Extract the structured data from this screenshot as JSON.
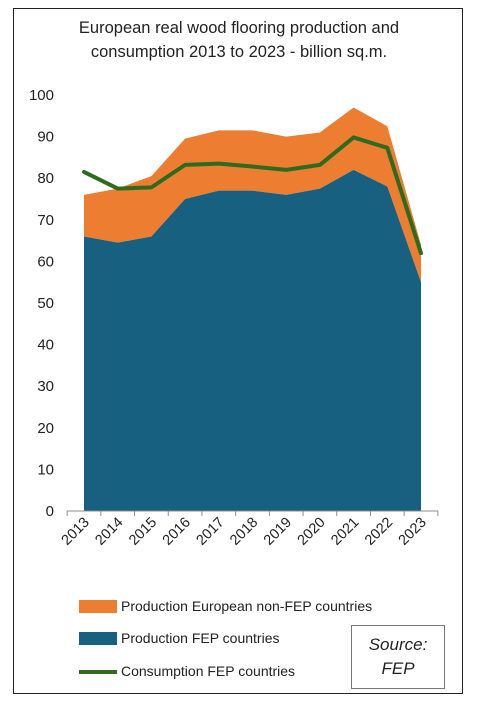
{
  "chart_data": {
    "type": "area",
    "title_line1": "European real wood flooring production and",
    "title_line2": "consumption 2013 to 2023 - billion sq.m.",
    "categories": [
      "2013",
      "2014",
      "2015",
      "2016",
      "2017",
      "2018",
      "2019",
      "2020",
      "2021",
      "2022",
      "2023"
    ],
    "ylim": [
      0,
      100
    ],
    "yticks": [
      0,
      10,
      20,
      30,
      40,
      50,
      60,
      70,
      80,
      90,
      100
    ],
    "stacked": true,
    "series": [
      {
        "name": "Production FEP countries",
        "kind": "area",
        "color": "#17607f",
        "values": [
          66,
          64.5,
          66,
          75,
          77,
          77,
          76,
          77.5,
          82,
          78,
          55
        ]
      },
      {
        "name": "Production European non-FEP countries",
        "kind": "area",
        "color": "#ed7d31",
        "values": [
          10,
          13,
          14.5,
          14.5,
          14.5,
          14.5,
          14,
          13.5,
          15,
          14.5,
          9
        ]
      },
      {
        "name": "Consumption FEP countries",
        "kind": "line",
        "color": "#2e6b1f",
        "values": [
          81.5,
          77.5,
          77.8,
          83.2,
          83.5,
          82.8,
          82,
          83.2,
          89.8,
          87.3,
          62
        ]
      }
    ],
    "legend_position": "bottom-left",
    "grid": false
  },
  "legend": {
    "items": [
      {
        "label": "Production European non-FEP countries",
        "color": "#ed7d31"
      },
      {
        "label": "Production FEP countries",
        "color": "#17607f"
      },
      {
        "label": "Consumption FEP countries",
        "color": "#2e6b1f"
      }
    ]
  },
  "source": {
    "line1": "Source:",
    "line2": "FEP"
  }
}
